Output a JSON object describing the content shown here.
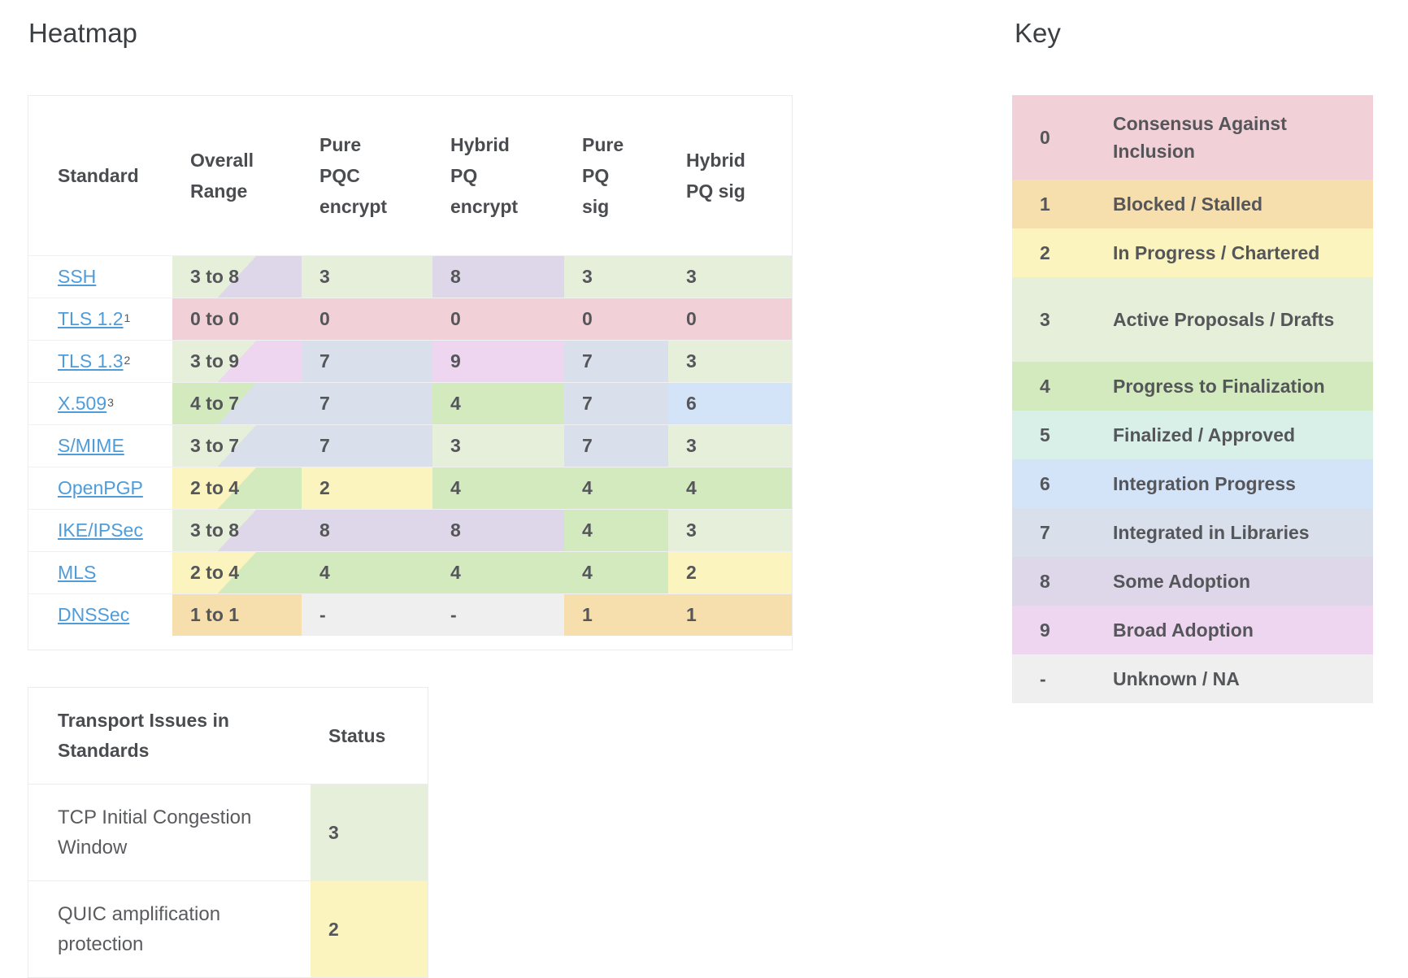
{
  "heatmap": {
    "title": "Heatmap",
    "columns": [
      "Standard",
      "Overall\nRange",
      "Pure\nPQC\nencrypt",
      "Hybrid\nPQ\nencrypt",
      "Pure\nPQ\nsig",
      "Hybrid\nPQ sig"
    ],
    "range_separator": " to ",
    "rows": [
      {
        "standard": "SSH",
        "sup": "",
        "range": [
          "3",
          "8"
        ],
        "values": [
          "3",
          "8",
          "3",
          "3"
        ]
      },
      {
        "standard": "TLS 1.2",
        "sup": "1",
        "range": [
          "0",
          "0"
        ],
        "values": [
          "0",
          "0",
          "0",
          "0"
        ]
      },
      {
        "standard": "TLS 1.3",
        "sup": "2",
        "range": [
          "3",
          "9"
        ],
        "values": [
          "7",
          "9",
          "7",
          "3"
        ]
      },
      {
        "standard": "X.509",
        "sup": "3",
        "range": [
          "4",
          "7"
        ],
        "values": [
          "7",
          "4",
          "7",
          "6"
        ]
      },
      {
        "standard": "S/MIME",
        "sup": "",
        "range": [
          "3",
          "7"
        ],
        "values": [
          "7",
          "3",
          "7",
          "3"
        ]
      },
      {
        "standard": "OpenPGP",
        "sup": "",
        "range": [
          "2",
          "4"
        ],
        "values": [
          "2",
          "4",
          "4",
          "4"
        ]
      },
      {
        "standard": "IKE/IPSec",
        "sup": "",
        "range": [
          "3",
          "8"
        ],
        "values": [
          "8",
          "8",
          "4",
          "3"
        ]
      },
      {
        "standard": "MLS",
        "sup": "",
        "range": [
          "2",
          "4"
        ],
        "values": [
          "4",
          "4",
          "4",
          "2"
        ]
      },
      {
        "standard": "DNSSec",
        "sup": "",
        "range": [
          "1",
          "1"
        ],
        "values": [
          "-",
          "-",
          "1",
          "1"
        ]
      }
    ]
  },
  "transport": {
    "header": "Transport Issues in Standards",
    "status_header": "Status",
    "rows": [
      {
        "label": "TCP Initial Congestion Window",
        "status": "3"
      },
      {
        "label": "QUIC amplification protection",
        "status": "2"
      }
    ]
  },
  "key": {
    "title": "Key",
    "entries": [
      {
        "value": "0",
        "label": "Consensus Against Inclusion",
        "color": "#f1d1d7",
        "two_line": true
      },
      {
        "value": "1",
        "label": "Blocked / Stalled",
        "color": "#f7dfad",
        "two_line": false
      },
      {
        "value": "2",
        "label": "In Progress / Chartered",
        "color": "#fbf4bf",
        "two_line": false
      },
      {
        "value": "3",
        "label": "Active Proposals / Drafts",
        "color": "#e6efda",
        "two_line": true
      },
      {
        "value": "4",
        "label": "Progress to Finalization",
        "color": "#d2eabe",
        "two_line": false
      },
      {
        "value": "5",
        "label": "Finalized / Approved",
        "color": "#d9f0e9",
        "two_line": false
      },
      {
        "value": "6",
        "label": "Integration Progress",
        "color": "#d4e4f8",
        "two_line": false
      },
      {
        "value": "7",
        "label": "Integrated in Libraries",
        "color": "#d9dfeb",
        "two_line": false
      },
      {
        "value": "8",
        "label": "Some Adoption",
        "color": "#ded7e9",
        "two_line": false
      },
      {
        "value": "9",
        "label": "Broad Adoption",
        "color": "#eed6f1",
        "two_line": false
      },
      {
        "value": "-",
        "label": "Unknown / NA",
        "color": "#efefef",
        "two_line": false
      }
    ]
  },
  "colors": {
    "link": "#4f9cda",
    "cell_text": "#55565a",
    "title_text": "#3b3e42"
  }
}
